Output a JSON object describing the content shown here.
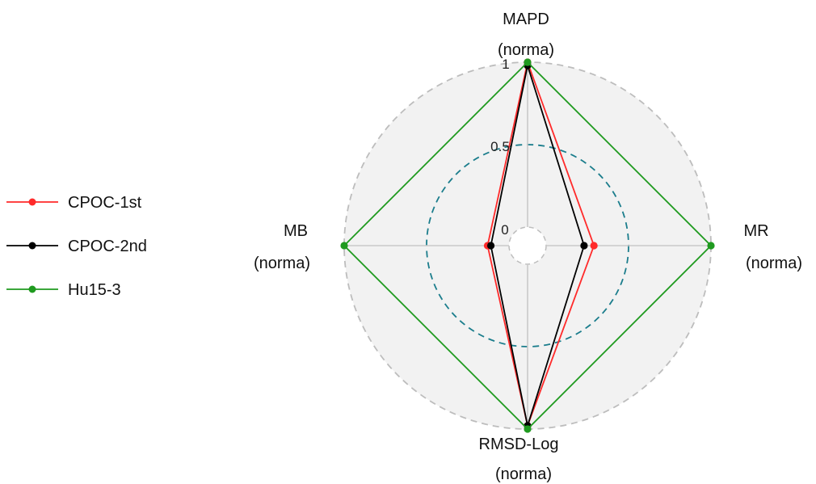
{
  "chart_data": {
    "type": "radar",
    "axes": [
      {
        "name": "MAPD",
        "unit": "(norma)",
        "position": "top"
      },
      {
        "name": "MR",
        "unit": "(norma)",
        "position": "right"
      },
      {
        "name": "RMSD-Log",
        "unit": "(norma)",
        "position": "bottom"
      },
      {
        "name": "MB",
        "unit": "(norma)",
        "position": "left"
      }
    ],
    "range": [
      0,
      1
    ],
    "rings": [
      0,
      0.5,
      1
    ],
    "tick_labels": [
      "0",
      "0.5",
      "1"
    ],
    "series": [
      {
        "name": "CPOC-1st",
        "color": "#ff2a2a",
        "values": [
          1.0,
          0.29,
          0.98,
          0.13
        ]
      },
      {
        "name": "CPOC-2nd",
        "color": "#000000",
        "values": [
          0.98,
          0.23,
          0.98,
          0.11
        ]
      },
      {
        "name": "Hu15-3",
        "color": "#1f9a1f",
        "values": [
          1.0,
          1.0,
          1.0,
          1.0
        ]
      }
    ],
    "legend": {
      "placement": "left"
    },
    "background_fill": "#f2f2f2",
    "outer_ring_color": "#bdbdbd",
    "mid_ring_color": "#1b7d8c"
  }
}
